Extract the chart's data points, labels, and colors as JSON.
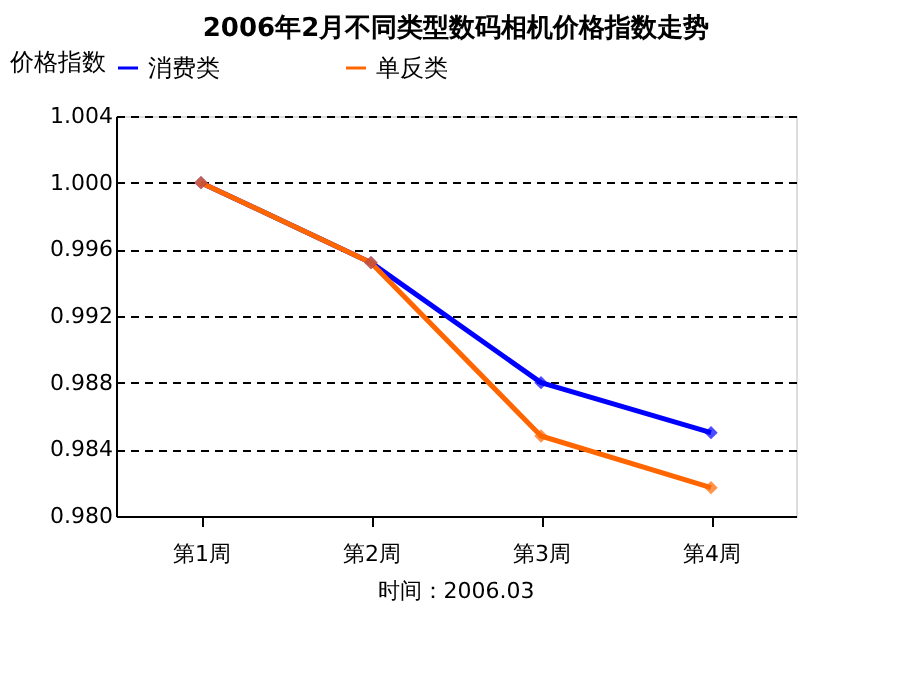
{
  "chart_data": {
    "type": "line",
    "title": "2006年2月不同类型数码相机价格指数走势",
    "ylabel": "价格指数",
    "categories": [
      "第1周",
      "第2周",
      "第3周",
      "第4周"
    ],
    "series": [
      {
        "name": "消费类",
        "color": "#0000ff",
        "values": [
          1.0,
          0.9952,
          0.988,
          0.985
        ]
      },
      {
        "name": "单反类",
        "color": "#ff6600",
        "values": [
          1.0,
          0.9952,
          0.9848,
          0.9817
        ]
      }
    ],
    "ylim": [
      0.98,
      1.004
    ],
    "yticks": [
      {
        "value": 0.98,
        "label": "0.980"
      },
      0.984,
      0.988,
      0.992,
      0.996,
      {
        "value": 1.0,
        "label": "1.000"
      },
      1.004
    ],
    "grid": "y",
    "legend": "top",
    "marker": "diamond",
    "line_style": "solid",
    "annotations": [
      "时间：2006.03"
    ]
  }
}
